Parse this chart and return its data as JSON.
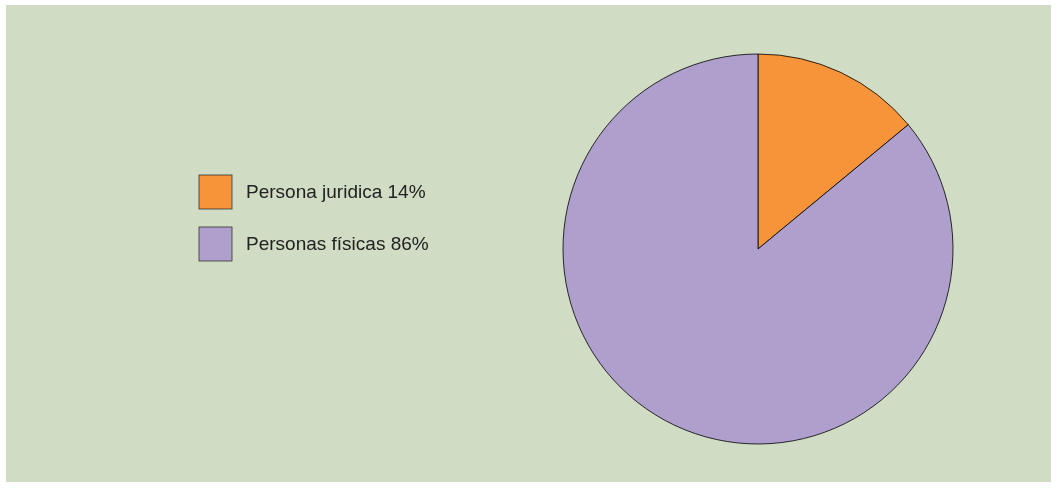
{
  "chart_data": {
    "type": "pie",
    "categories": [
      "Persona juridica 14%",
      "Personas físicas 86%"
    ],
    "values": [
      14,
      86
    ],
    "colors": [
      "#f7943a",
      "#af9fcc"
    ],
    "legend": "left"
  }
}
